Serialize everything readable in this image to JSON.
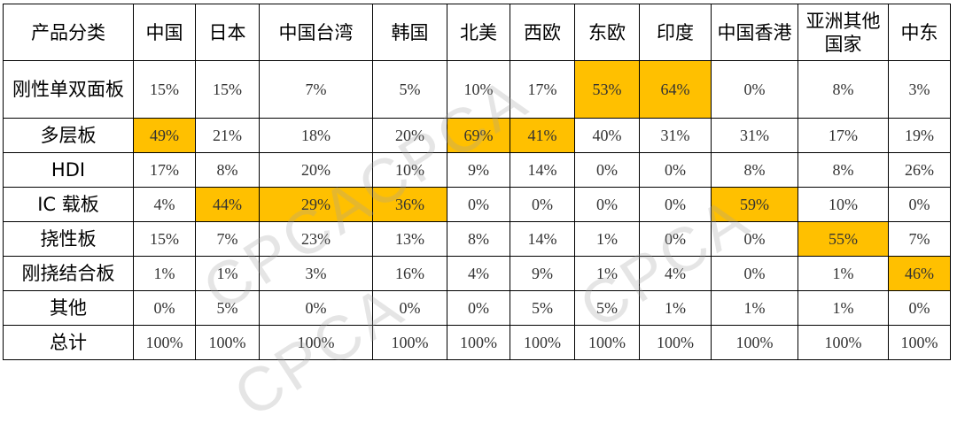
{
  "chart_data": {
    "type": "table",
    "corner_header": "产品分类",
    "columns": [
      "中国",
      "日本",
      "中国台湾",
      "韩国",
      "北美",
      "西欧",
      "东欧",
      "印度",
      "中国香港",
      "亚洲其他国家",
      "中东"
    ],
    "rows": [
      {
        "category": "刚性单双面板",
        "values": [
          "15%",
          "15%",
          "7%",
          "5%",
          "10%",
          "17%",
          "53%",
          "64%",
          "0%",
          "8%",
          "3%"
        ],
        "highlight": [
          6,
          7
        ]
      },
      {
        "category": "多层板",
        "values": [
          "49%",
          "21%",
          "18%",
          "20%",
          "69%",
          "41%",
          "40%",
          "31%",
          "31%",
          "17%",
          "19%"
        ],
        "highlight": [
          0,
          4,
          5
        ]
      },
      {
        "category": "HDI",
        "values": [
          "17%",
          "8%",
          "20%",
          "10%",
          "9%",
          "14%",
          "0%",
          "0%",
          "8%",
          "8%",
          "26%"
        ],
        "highlight": []
      },
      {
        "category": "IC 载板",
        "values": [
          "4%",
          "44%",
          "29%",
          "36%",
          "0%",
          "0%",
          "0%",
          "0%",
          "59%",
          "10%",
          "0%"
        ],
        "highlight": [
          1,
          2,
          3,
          8
        ]
      },
      {
        "category": "挠性板",
        "values": [
          "15%",
          "7%",
          "23%",
          "13%",
          "8%",
          "14%",
          "1%",
          "0%",
          "0%",
          "55%",
          "7%"
        ],
        "highlight": [
          9
        ]
      },
      {
        "category": "刚挠结合板",
        "values": [
          "1%",
          "1%",
          "3%",
          "16%",
          "4%",
          "9%",
          "1%",
          "4%",
          "0%",
          "1%",
          "46%"
        ],
        "highlight": [
          10
        ]
      },
      {
        "category": "其他",
        "values": [
          "0%",
          "5%",
          "0%",
          "0%",
          "0%",
          "5%",
          "5%",
          "1%",
          "1%",
          "1%",
          "0%"
        ],
        "highlight": []
      },
      {
        "category": "总计",
        "values": [
          "100%",
          "100%",
          "100%",
          "100%",
          "100%",
          "100%",
          "100%",
          "100%",
          "100%",
          "100%",
          "100%"
        ],
        "highlight": []
      }
    ],
    "highlight_color": "#FFC000",
    "watermark": "CPCA"
  }
}
